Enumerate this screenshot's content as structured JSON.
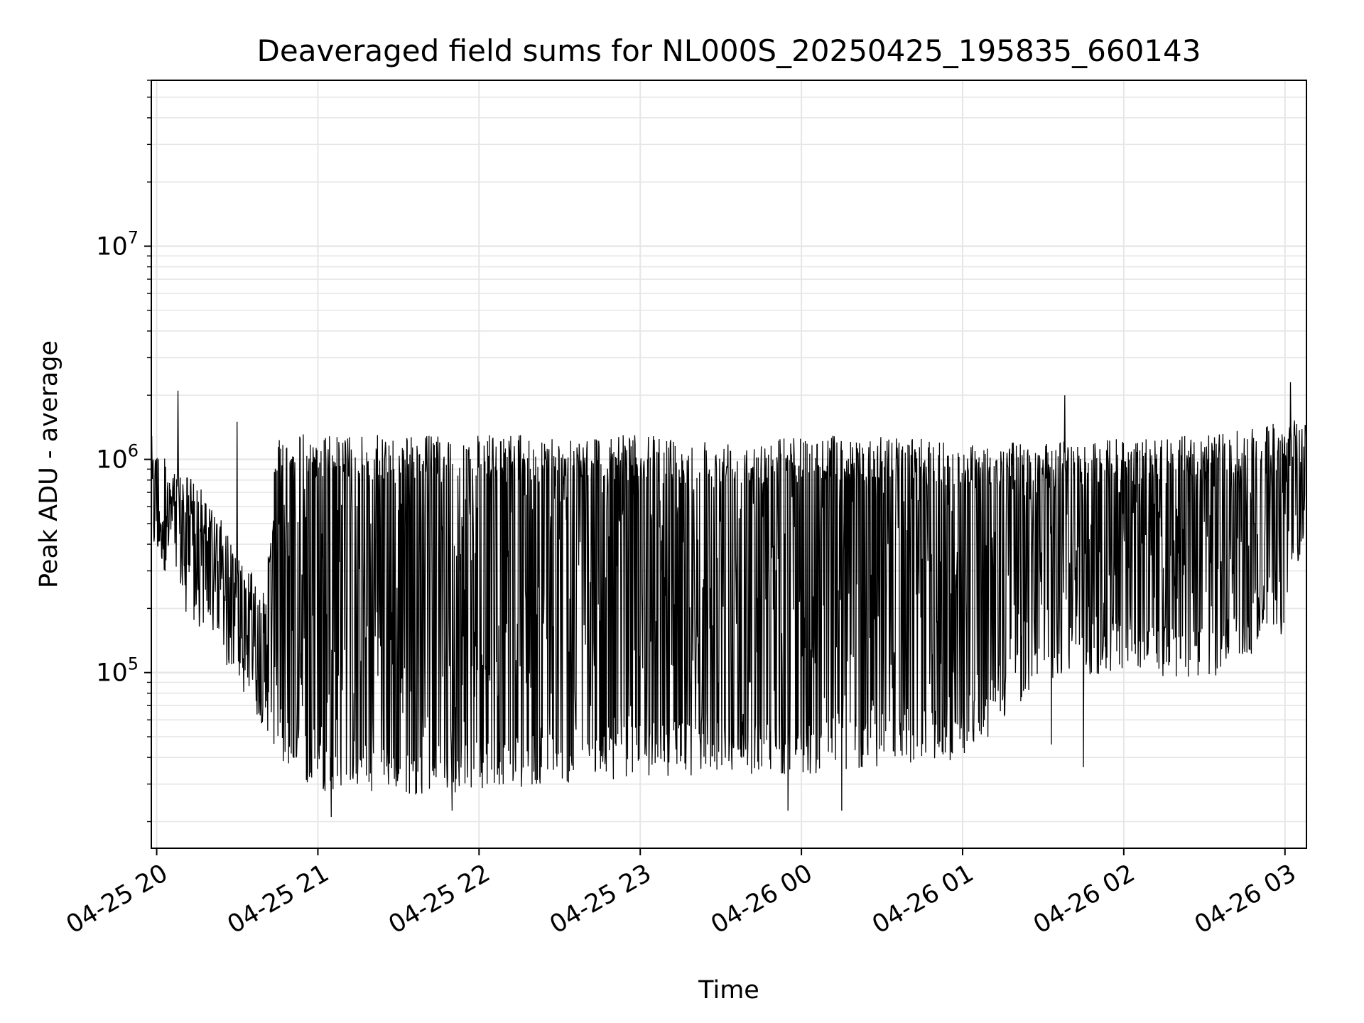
{
  "chart_data": {
    "type": "line",
    "title": "Deaveraged field sums for NL000S_20250425_195835_660143",
    "xlabel": "Time",
    "ylabel": "Peak ADU - average",
    "yscale": "log",
    "xlim": [
      "2025-04-25 19:58",
      "2025-04-26 03:08"
    ],
    "ylim": [
      15000,
      60000000
    ],
    "grid": true,
    "line_color": "#000000",
    "grid_color": "#e6e6e6",
    "x_ticks": [
      {
        "t": "2025-04-25 20:00",
        "label": "04-25 20"
      },
      {
        "t": "2025-04-25 21:00",
        "label": "04-25 21"
      },
      {
        "t": "2025-04-25 22:00",
        "label": "04-25 22"
      },
      {
        "t": "2025-04-25 23:00",
        "label": "04-25 23"
      },
      {
        "t": "2025-04-26 00:00",
        "label": "04-26 00"
      },
      {
        "t": "2025-04-26 01:00",
        "label": "04-26 01"
      },
      {
        "t": "2025-04-26 02:00",
        "label": "04-26 02"
      },
      {
        "t": "2025-04-26 03:00",
        "label": "04-26 03"
      }
    ],
    "y_ticks": [
      {
        "value": 100000,
        "base": "10",
        "exp": "5"
      },
      {
        "value": 1000000,
        "base": "10",
        "exp": "6"
      },
      {
        "value": 10000000,
        "base": "10",
        "exp": "7"
      }
    ],
    "series": [
      {
        "points": [
          {
            "t": "2025-04-25 19:58",
            "floor": 320000,
            "ceil": 1300000
          },
          {
            "t": "2025-04-25 20:05",
            "floor": 290000,
            "ceil": 1000000
          },
          {
            "t": "2025-04-25 20:10",
            "floor": 200000,
            "ceil": 900000
          },
          {
            "t": "2025-04-25 20:15",
            "floor": 160000,
            "ceil": 800000
          },
          {
            "t": "2025-04-25 20:20",
            "floor": 140000,
            "ceil": 600000
          },
          {
            "t": "2025-04-25 20:25",
            "floor": 110000,
            "ceil": 500000
          },
          {
            "t": "2025-04-25 20:30",
            "floor": 90000,
            "ceil": 350000
          },
          {
            "t": "2025-04-25 20:35",
            "floor": 70000,
            "ceil": 300000
          },
          {
            "t": "2025-04-25 20:40",
            "floor": 55000,
            "ceil": 250000
          },
          {
            "t": "2025-04-25 20:45",
            "floor": 40000,
            "ceil": 1300000
          },
          {
            "t": "2025-04-25 20:50",
            "floor": 33000,
            "ceil": 1350000
          },
          {
            "t": "2025-04-25 21:00",
            "floor": 28000,
            "ceil": 1300000
          },
          {
            "t": "2025-04-25 21:30",
            "floor": 26000,
            "ceil": 1300000
          },
          {
            "t": "2025-04-25 22:00",
            "floor": 28000,
            "ceil": 1300000
          },
          {
            "t": "2025-04-25 22:30",
            "floor": 30000,
            "ceil": 1300000
          },
          {
            "t": "2025-04-25 23:00",
            "floor": 32000,
            "ceil": 1300000
          },
          {
            "t": "2025-04-25 23:30",
            "floor": 33000,
            "ceil": 1250000
          },
          {
            "t": "2025-04-26 00:00",
            "floor": 33000,
            "ceil": 1300000
          },
          {
            "t": "2025-04-26 00:30",
            "floor": 36000,
            "ceil": 1300000
          },
          {
            "t": "2025-04-26 01:00",
            "floor": 38000,
            "ceil": 1200000
          },
          {
            "t": "2025-04-26 01:30",
            "floor": 90000,
            "ceil": 1200000
          },
          {
            "t": "2025-04-26 02:00",
            "floor": 100000,
            "ceil": 1250000
          },
          {
            "t": "2025-04-26 02:30",
            "floor": 90000,
            "ceil": 1300000
          },
          {
            "t": "2025-04-26 03:00",
            "floor": 150000,
            "ceil": 1500000
          },
          {
            "t": "2025-04-26 03:08",
            "floor": 500000,
            "ceil": 1600000
          }
        ],
        "spikes": [
          {
            "t": "2025-04-25 20:08",
            "value": 2100000
          },
          {
            "t": "2025-04-25 20:30",
            "value": 1500000
          },
          {
            "t": "2025-04-25 21:05",
            "value": 21000
          },
          {
            "t": "2025-04-25 21:50",
            "value": 22500
          },
          {
            "t": "2025-04-25 23:55",
            "value": 22500
          },
          {
            "t": "2025-04-26 00:15",
            "value": 22500
          },
          {
            "t": "2025-04-26 01:33",
            "value": 46000
          },
          {
            "t": "2025-04-26 01:38",
            "value": 2000000
          },
          {
            "t": "2025-04-26 01:45",
            "value": 36000
          },
          {
            "t": "2025-04-26 03:02",
            "value": 2300000
          }
        ]
      }
    ]
  }
}
